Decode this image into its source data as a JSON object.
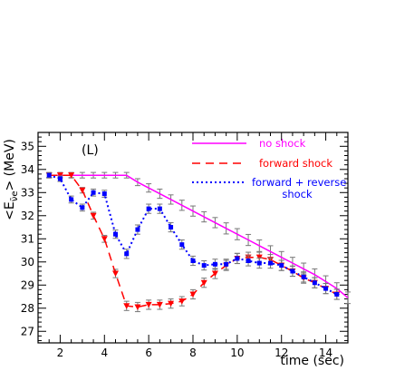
{
  "chart_data": {
    "type": "line",
    "panel_label": "(L)",
    "xlabel": "time (sec)",
    "ylabel": "<E",
    "ylabel_sub": "ν̄e",
    "ylabel_suffix": "> (MeV)",
    "xlim": [
      1,
      15
    ],
    "ylim": [
      26.5,
      35.6
    ],
    "x_ticks": [
      2,
      4,
      6,
      8,
      10,
      12,
      14
    ],
    "y_ticks": [
      27,
      28,
      29,
      30,
      31,
      32,
      33,
      34,
      35
    ],
    "grid": false,
    "legend_position": "top-right",
    "series": [
      {
        "name": "no shock",
        "color": "#ff00ff",
        "line_style": "solid",
        "marker": "none",
        "x": [
          1.5,
          2,
          2.5,
          3,
          3.5,
          4,
          4.5,
          5,
          5.5,
          6,
          6.5,
          7,
          7.5,
          8,
          8.5,
          9,
          9.5,
          10,
          10.5,
          11,
          11.5,
          12,
          12.5,
          13,
          13.5,
          14,
          14.5,
          15
        ],
        "y": [
          33.75,
          33.75,
          33.75,
          33.75,
          33.75,
          33.75,
          33.75,
          33.75,
          33.45,
          33.2,
          32.95,
          32.7,
          32.45,
          32.2,
          31.95,
          31.7,
          31.45,
          31.2,
          30.95,
          30.7,
          30.45,
          30.2,
          29.95,
          29.7,
          29.45,
          29.15,
          28.85,
          28.45
        ],
        "err": [
          0.12,
          0.12,
          0.12,
          0.12,
          0.12,
          0.12,
          0.12,
          0.12,
          0.15,
          0.18,
          0.2,
          0.2,
          0.22,
          0.22,
          0.22,
          0.22,
          0.24,
          0.24,
          0.24,
          0.25,
          0.25,
          0.25,
          0.25,
          0.25,
          0.25,
          0.25,
          0.25,
          0.25
        ]
      },
      {
        "name": "forward shock",
        "color": "#ff0000",
        "line_style": "dashed",
        "marker": "triangle-down",
        "x": [
          1.5,
          2,
          2.5,
          3,
          3.5,
          4,
          4.5,
          5,
          5.5,
          6,
          6.5,
          7,
          7.5,
          8,
          8.5,
          9,
          9.5,
          10,
          10.5,
          11,
          11.5,
          12,
          12.5,
          13,
          13.5,
          14,
          14.5
        ],
        "y": [
          33.75,
          33.75,
          33.75,
          33.1,
          32.0,
          31.0,
          29.5,
          28.1,
          28.05,
          28.15,
          28.15,
          28.2,
          28.3,
          28.6,
          29.1,
          29.5,
          29.85,
          30.15,
          30.2,
          30.2,
          30.1,
          29.85,
          29.6,
          29.3,
          29.1,
          28.85,
          28.6
        ],
        "err": [
          0.1,
          0.1,
          0.1,
          0.12,
          0.15,
          0.15,
          0.18,
          0.2,
          0.2,
          0.2,
          0.2,
          0.2,
          0.2,
          0.2,
          0.2,
          0.22,
          0.22,
          0.22,
          0.22,
          0.22,
          0.22,
          0.22,
          0.22,
          0.22,
          0.22,
          0.22,
          0.22
        ]
      },
      {
        "name": "forward + reverse shock",
        "name_line1": "forward + reverse",
        "name_line2": "shock",
        "color": "#0000ff",
        "line_style": "dotted",
        "marker": "square",
        "x": [
          1.5,
          2,
          2.5,
          3,
          3.5,
          4,
          4.5,
          5,
          5.5,
          6,
          6.5,
          7,
          7.5,
          8,
          8.5,
          9,
          9.5,
          10,
          10.5,
          11,
          11.5,
          12,
          12.5,
          13,
          13.5,
          14,
          14.5
        ],
        "y": [
          33.75,
          33.6,
          32.7,
          32.35,
          33.0,
          32.95,
          31.2,
          30.35,
          31.4,
          32.3,
          32.3,
          31.5,
          30.75,
          30.05,
          29.85,
          29.9,
          29.9,
          30.15,
          30.05,
          29.95,
          29.95,
          29.85,
          29.6,
          29.35,
          29.1,
          28.85,
          28.6
        ],
        "err": [
          0.1,
          0.12,
          0.15,
          0.15,
          0.15,
          0.15,
          0.18,
          0.2,
          0.2,
          0.2,
          0.2,
          0.2,
          0.2,
          0.2,
          0.2,
          0.22,
          0.22,
          0.22,
          0.22,
          0.22,
          0.22,
          0.22,
          0.22,
          0.22,
          0.22,
          0.22,
          0.22
        ]
      }
    ]
  }
}
